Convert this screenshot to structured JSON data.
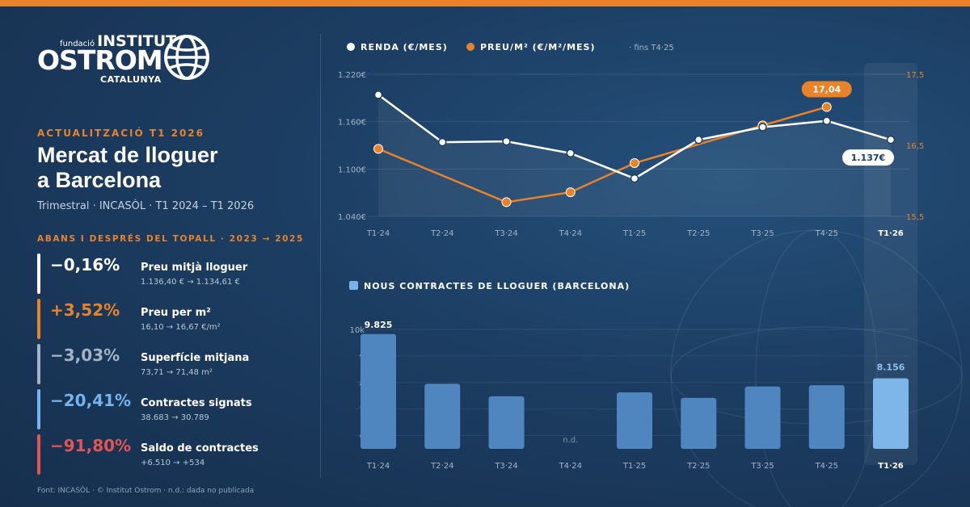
{
  "colors": {
    "orange": "#e8832a",
    "white": "#ffffff",
    "gray": "#a3b4c6",
    "lightblue": "#76b3ec",
    "red": "#e35454"
  },
  "logo": {
    "small": "fundació",
    "line1": "INSTITUT",
    "line2": "OSTROM",
    "line3": "CATALUNYA",
    "icon": "globe-icon"
  },
  "kicker": "ACTUALITZACIÓ T1 2026",
  "title_line1": "Mercat de lloguer",
  "title_line2": "a Barcelona",
  "subtitle": "Trimestral · INCASÒL · T1 2024 – T1 2026",
  "stats_header": "ABANS I DESPRÉS DEL TOPALL · 2023 → 2025",
  "stats": [
    {
      "pct": "−0,16%",
      "label": "Preu mitjà lloguer",
      "detail": "1.136,40 € → 1.134,61 €",
      "color": "#ffffff"
    },
    {
      "pct": "+3,52%",
      "label": "Preu per m²",
      "detail": "16,10 → 16,67 €/m²",
      "color": "#e8832a"
    },
    {
      "pct": "−3,03%",
      "label": "Superfície mitjana",
      "detail": "73,71 → 71,48 m²",
      "color": "#a3b4c6"
    },
    {
      "pct": "−20,41%",
      "label": "Contractes signats",
      "detail": "38.683 → 30.789",
      "color": "#76b3ec"
    },
    {
      "pct": "−91,80%",
      "label": "Saldo de contractes",
      "detail": "+6.510 → +534",
      "color": "#e35454"
    }
  ],
  "footer": "Font: INCASÒL · © Institut Ostrom · n.d.: dada no publicada",
  "chart_data": [
    {
      "type": "line",
      "categories": [
        "T1·24",
        "T2·24",
        "T3·24",
        "T4·24",
        "T1·25",
        "T2·25",
        "T3·25",
        "T4·25",
        "T1·26"
      ],
      "series": [
        {
          "name": "RENDA (€/MES)",
          "axis": "left",
          "color": "#ffffff",
          "values": [
            1194,
            1134,
            1135,
            1120,
            1088,
            1137,
            1153,
            1161,
            1137
          ]
        },
        {
          "name": "PREU/M² (€/M²/MES)",
          "axis": "right",
          "color": "#e8832a",
          "values": [
            16.45,
            null,
            15.7,
            15.84,
            16.25,
            null,
            16.78,
            17.04,
            null
          ]
        }
      ],
      "legend_note": "· fins T4·25",
      "yleft_ticks": [
        "1.220€",
        "1.160€",
        "1.100€",
        "1.040€"
      ],
      "yleft_range": [
        1040,
        1220
      ],
      "yright_ticks": [
        "17,5",
        "16,5",
        "15,5"
      ],
      "yright_range": [
        15.5,
        17.5
      ],
      "callout_left": "1.137€",
      "callout_right": "17,04",
      "highlight": "T1·26",
      "grid": true
    },
    {
      "type": "bar",
      "title": "NOUS CONTRACTES DE LLOGUER (BARCELONA)",
      "categories": [
        "T1·24",
        "T2·24",
        "T3·24",
        "T4·24",
        "T1·25",
        "T2·25",
        "T3·25",
        "T4·25",
        "T1·26"
      ],
      "values": [
        9825,
        7950,
        7480,
        null,
        7630,
        7420,
        7850,
        7900,
        8156
      ],
      "missing_label": "n.d.",
      "value_labels": {
        "first": "9.825",
        "last": "8.156"
      },
      "y_ticks": [
        "10k",
        "9",
        "8",
        "7",
        "6"
      ],
      "ylim": [
        5500,
        10000
      ],
      "highlight": "T1·26",
      "grid": true
    }
  ]
}
